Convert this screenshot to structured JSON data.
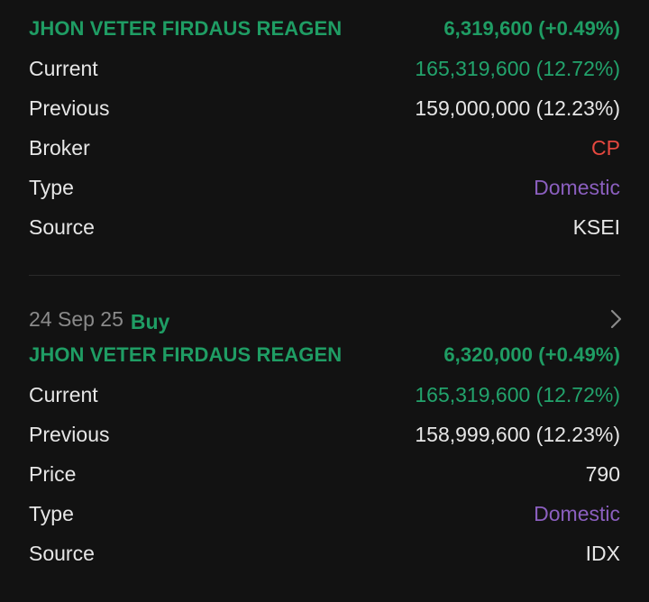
{
  "entries": [
    {
      "holder": "JHON VETER FIRDAUS REAGEN",
      "change": "6,319,600 (+0.49%)",
      "rows": [
        {
          "label": "Current",
          "value": "165,319,600 (12.72%)"
        },
        {
          "label": "Previous",
          "value": "159,000,000 (12.23%)"
        },
        {
          "label": "Broker",
          "value": "CP"
        },
        {
          "label": "Type",
          "value": "Domestic"
        },
        {
          "label": "Source",
          "value": "KSEI"
        }
      ]
    },
    {
      "date": "24 Sep 25",
      "action": "Buy",
      "holder": "JHON VETER FIRDAUS REAGEN",
      "change": "6,320,000 (+0.49%)",
      "rows": [
        {
          "label": "Current",
          "value": "165,319,600 (12.72%)"
        },
        {
          "label": "Previous",
          "value": "158,999,600 (12.23%)"
        },
        {
          "label": "Price",
          "value": "790"
        },
        {
          "label": "Type",
          "value": "Domestic"
        },
        {
          "label": "Source",
          "value": "IDX"
        }
      ]
    }
  ],
  "colors": {
    "background": "#121212",
    "green": "#1f9d64",
    "red": "#e5483f",
    "purple": "#8b5fbf",
    "muted": "#8a8a8a"
  },
  "icons": {
    "chevron": "chevron-right-icon"
  }
}
